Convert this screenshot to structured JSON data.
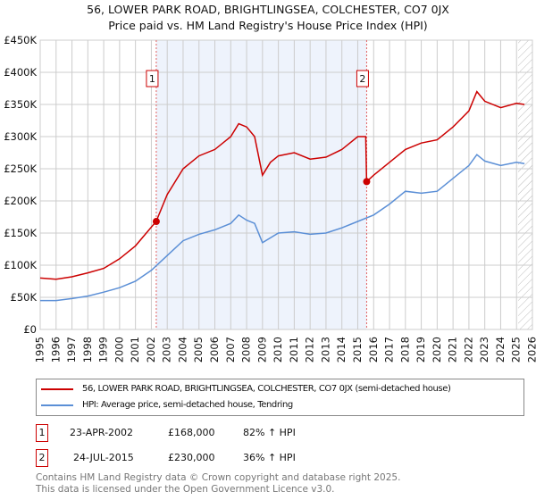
{
  "title": "56, LOWER PARK ROAD, BRIGHTLINGSEA, COLCHESTER, CO7 0JX",
  "subtitle": "Price paid vs. HM Land Registry's House Price Index (HPI)",
  "chart_data": {
    "type": "line",
    "title": "56, LOWER PARK ROAD, BRIGHTLINGSEA, COLCHESTER, CO7 0JX",
    "ylim": [
      0,
      450000
    ],
    "xlim": [
      1995,
      2026
    ],
    "yticks": [
      0,
      50000,
      100000,
      150000,
      200000,
      250000,
      300000,
      350000,
      400000,
      450000
    ],
    "ytick_labels": [
      "£0",
      "£50K",
      "£100K",
      "£150K",
      "£200K",
      "£250K",
      "£300K",
      "£350K",
      "£400K",
      "£450K"
    ],
    "xticks": [
      "1995",
      "1996",
      "1997",
      "1998",
      "1999",
      "2000",
      "2001",
      "2002",
      "2003",
      "2004",
      "2005",
      "2006",
      "2007",
      "2008",
      "2009",
      "2010",
      "2011",
      "2012",
      "2013",
      "2014",
      "2015",
      "2016",
      "2017",
      "2018",
      "2019",
      "2020",
      "2021",
      "2022",
      "2023",
      "2024",
      "2025",
      "2026"
    ],
    "grid": true,
    "series": [
      {
        "name": "56, LOWER PARK ROAD, BRIGHTLINGSEA, COLCHESTER, CO7 0JX (semi-detached house)",
        "color": "#cc0000",
        "x": [
          1995,
          1996,
          1997,
          1998,
          1999,
          2000,
          2001,
          2002.3,
          2003,
          2004,
          2005,
          2006,
          2007,
          2007.5,
          2008,
          2008.5,
          2009,
          2009.5,
          2010,
          2011,
          2012,
          2013,
          2014,
          2015,
          2015.5,
          2015.56,
          2016,
          2017,
          2018,
          2019,
          2020,
          2021,
          2022,
          2022.5,
          2023,
          2024,
          2025,
          2025.5
        ],
        "y": [
          80000,
          78000,
          82000,
          88000,
          95000,
          110000,
          130000,
          168000,
          210000,
          250000,
          270000,
          280000,
          300000,
          320000,
          315000,
          300000,
          240000,
          260000,
          270000,
          275000,
          265000,
          268000,
          280000,
          300000,
          300000,
          230000,
          240000,
          260000,
          280000,
          290000,
          295000,
          315000,
          340000,
          370000,
          355000,
          345000,
          352000,
          350000
        ]
      },
      {
        "name": "HPI: Average price, semi-detached house, Tendring",
        "color": "#5b8fd6",
        "x": [
          1995,
          1996,
          1997,
          1998,
          1999,
          2000,
          2001,
          2002,
          2003,
          2004,
          2005,
          2006,
          2007,
          2007.5,
          2008,
          2008.5,
          2009,
          2010,
          2011,
          2012,
          2013,
          2014,
          2015,
          2016,
          2017,
          2018,
          2019,
          2020,
          2021,
          2022,
          2022.5,
          2023,
          2024,
          2025,
          2025.5
        ],
        "y": [
          45000,
          45000,
          48000,
          52000,
          58000,
          65000,
          75000,
          92000,
          115000,
          138000,
          148000,
          155000,
          165000,
          178000,
          170000,
          165000,
          135000,
          150000,
          152000,
          148000,
          150000,
          158000,
          168000,
          178000,
          195000,
          215000,
          212000,
          215000,
          235000,
          255000,
          272000,
          262000,
          255000,
          260000,
          258000
        ]
      }
    ],
    "annotations": [
      {
        "label": "1",
        "x": 2002.31,
        "y": 168000
      },
      {
        "label": "2",
        "x": 2015.56,
        "y": 230000
      }
    ],
    "shaded_range": [
      2002.31,
      2015.56
    ]
  },
  "legend": [
    "56, LOWER PARK ROAD, BRIGHTLINGSEA, COLCHESTER, CO7 0JX (semi-detached house)",
    "HPI: Average price, semi-detached house, Tendring"
  ],
  "transactions": [
    {
      "num": "1",
      "date": "23-APR-2002",
      "price": "£168,000",
      "hpi": "82% ↑ HPI"
    },
    {
      "num": "2",
      "date": "24-JUL-2015",
      "price": "£230,000",
      "hpi": "36% ↑ HPI"
    }
  ],
  "footer": [
    "Contains HM Land Registry data © Crown copyright and database right 2025.",
    "This data is licensed under the Open Government Licence v3.0."
  ]
}
